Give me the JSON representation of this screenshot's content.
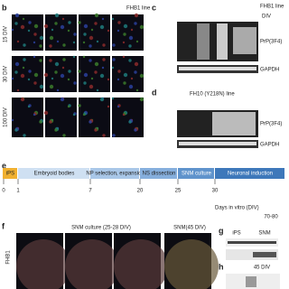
{
  "panel_b": {
    "letter": "b",
    "title": "FHB1 line",
    "rows": [
      "15 DIV",
      "30 DIV",
      "100 DIV"
    ]
  },
  "panel_c": {
    "letter": "c",
    "title": "FHB1 line",
    "header": "DIV",
    "bands": [
      "PrP(3F4)",
      "GAPDH"
    ]
  },
  "panel_d": {
    "letter": "d",
    "title": "FH10 (Y218N) line",
    "bands": [
      "PrP(3F4)",
      "GAPDH"
    ]
  },
  "panel_e": {
    "letter": "e",
    "stages": [
      "iPS",
      "Embryoid bodies",
      "NP selection, expansion",
      "NS dissection",
      "SNM culture",
      "Neuronal induction"
    ],
    "days": [
      "0",
      "1",
      "7",
      "20",
      "25",
      "30",
      "70-80"
    ],
    "axis_label": "Days in vitro (DIV)"
  },
  "panel_f": {
    "letter": "f",
    "title": "SNM culture (25-28 DIV)",
    "title2": "SNM(45 DIV)",
    "row": "FHB1"
  },
  "panel_g": {
    "letter": "g",
    "columns": [
      "iPS",
      "SNM"
    ]
  },
  "panel_h": {
    "letter": "h",
    "header": "45 DIV"
  }
}
